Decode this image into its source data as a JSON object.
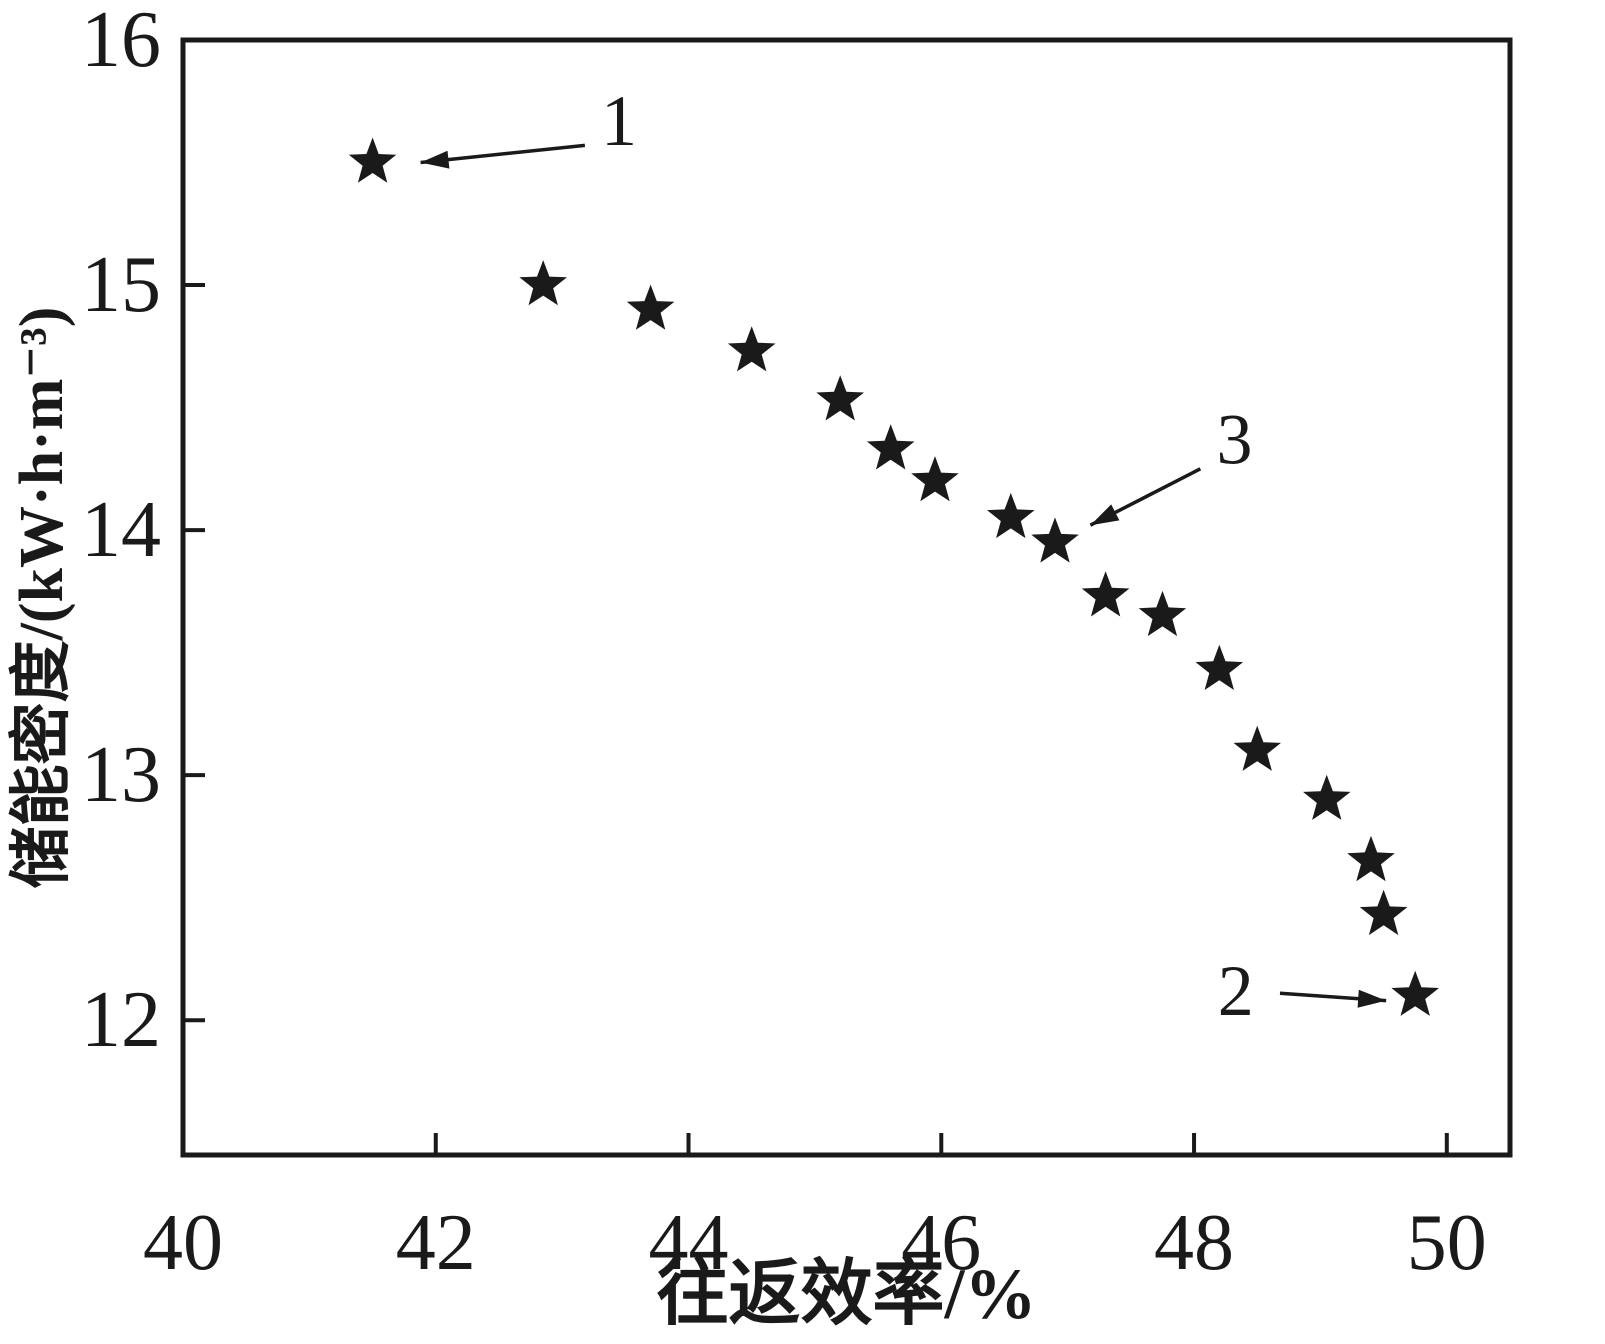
{
  "figure": {
    "background": "#ffffff",
    "axis_color": "#1a1a1a",
    "marker_color": "#1a1a1a",
    "marker_shape": "star"
  },
  "chart_data": {
    "type": "scatter",
    "title": "",
    "xlabel": "往返效率/%",
    "ylabel": "储能密度/(kW·h·m⁻³)",
    "xlim": [
      40,
      50.5
    ],
    "ylim": [
      11.45,
      16
    ],
    "xticks": [
      40,
      42,
      44,
      46,
      48,
      50
    ],
    "yticks": [
      12,
      13,
      14,
      15,
      16
    ],
    "grid": false,
    "legend": "none",
    "series": [
      {
        "name": "pareto-front-points",
        "marker": "star",
        "color": "#1a1a1a",
        "points": [
          [
            41.5,
            15.5
          ],
          [
            42.85,
            15.0
          ],
          [
            43.7,
            14.9
          ],
          [
            44.5,
            14.73
          ],
          [
            45.2,
            14.53
          ],
          [
            45.6,
            14.33
          ],
          [
            45.95,
            14.2
          ],
          [
            46.55,
            14.05
          ],
          [
            46.9,
            13.95
          ],
          [
            47.3,
            13.73
          ],
          [
            47.75,
            13.65
          ],
          [
            48.2,
            13.43
          ],
          [
            48.5,
            13.1
          ],
          [
            49.05,
            12.9
          ],
          [
            49.4,
            12.65
          ],
          [
            49.5,
            12.43
          ],
          [
            49.75,
            12.1
          ]
        ]
      }
    ],
    "annotations": [
      {
        "text": "1",
        "label_x": 43.45,
        "label_y": 15.67,
        "arrow_from_x": 43.18,
        "arrow_from_y": 15.57,
        "arrow_to_x": 41.88,
        "arrow_to_y": 15.5
      },
      {
        "text": "3",
        "label_x": 48.32,
        "label_y": 14.37,
        "arrow_from_x": 48.05,
        "arrow_from_y": 14.25,
        "arrow_to_x": 47.18,
        "arrow_to_y": 14.02
      },
      {
        "text": "2",
        "label_x": 48.33,
        "label_y": 12.12,
        "arrow_from_x": 48.68,
        "arrow_from_y": 12.11,
        "arrow_to_x": 49.52,
        "arrow_to_y": 12.08
      }
    ]
  }
}
